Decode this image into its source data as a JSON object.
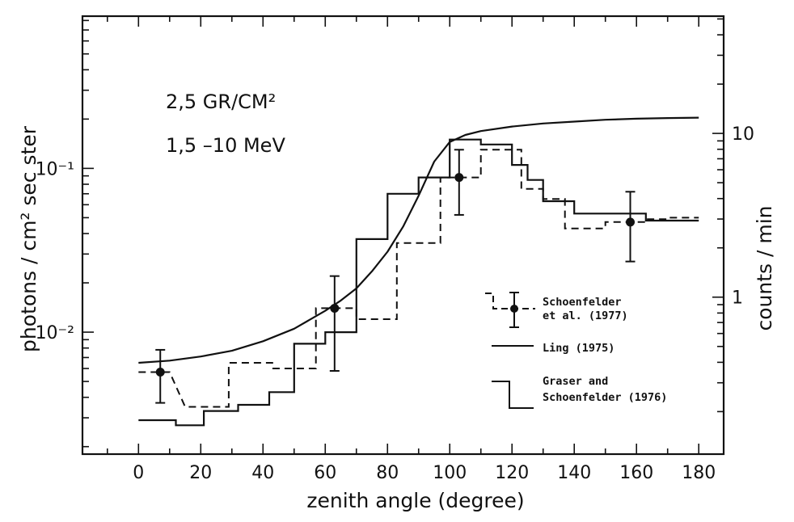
{
  "chart_data": {
    "type": "line",
    "annotations": [
      "2,5 GR/CM²",
      "1,5 –10 MeV"
    ],
    "xlabel": "zenith angle (degree)",
    "ylabel": "photons / cm² sec ster",
    "y2label": "counts / min",
    "xlim": [
      -18,
      188
    ],
    "ylim": [
      0.0018,
      0.85
    ],
    "yscale": "log",
    "y2lim": [
      0.11,
      52
    ],
    "y2scale": "log",
    "x_ticks": [
      "0",
      "20",
      "40",
      "60",
      "80",
      "100",
      "120",
      "140",
      "160",
      "180"
    ],
    "y_ticks": [
      {
        "value": 0.1,
        "label": "10⁻¹"
      },
      {
        "value": 0.01,
        "label": "10⁻²"
      }
    ],
    "y2_ticks": [
      {
        "value": 10,
        "label": "10"
      },
      {
        "value": 1,
        "label": "1"
      }
    ],
    "legend": [
      {
        "name": "Schoenfelder",
        "name2": "et al. (1977)"
      },
      {
        "name": "Ling (1975)",
        "name2": ""
      },
      {
        "name": "Graser and",
        "name2": "Schoenfelder (1976)"
      }
    ],
    "legend_position": "center-right",
    "series": [
      {
        "name": "Schoenfelder et al. (1977)",
        "style": "dashed-histogram",
        "steps": [
          [
            0,
            0.0057
          ],
          [
            10,
            0.0057
          ],
          [
            15,
            0.0035
          ],
          [
            29,
            0.0035
          ],
          [
            29,
            0.0065
          ],
          [
            43,
            0.0065
          ],
          [
            43,
            0.006
          ],
          [
            57,
            0.006
          ],
          [
            57,
            0.014
          ],
          [
            70,
            0.014
          ],
          [
            70,
            0.012
          ],
          [
            83,
            0.012
          ],
          [
            83,
            0.035
          ],
          [
            97,
            0.035
          ],
          [
            97,
            0.088
          ],
          [
            110,
            0.088
          ],
          [
            110,
            0.13
          ],
          [
            123,
            0.13
          ],
          [
            123,
            0.075
          ],
          [
            130,
            0.075
          ],
          [
            130,
            0.065
          ],
          [
            137,
            0.065
          ],
          [
            137,
            0.043
          ],
          [
            150,
            0.043
          ],
          [
            150,
            0.047
          ],
          [
            163,
            0.047
          ],
          [
            163,
            0.049
          ],
          [
            170,
            0.049
          ],
          [
            170,
            0.05
          ],
          [
            180,
            0.05
          ]
        ],
        "points": [
          {
            "x": 7,
            "y": 0.0057,
            "ylo": 0.0037,
            "yhi": 0.0078
          },
          {
            "x": 63,
            "y": 0.014,
            "ylo": 0.0058,
            "yhi": 0.022
          },
          {
            "x": 103,
            "y": 0.088,
            "ylo": 0.052,
            "yhi": 0.13
          },
          {
            "x": 158,
            "y": 0.047,
            "ylo": 0.027,
            "yhi": 0.072
          }
        ]
      },
      {
        "name": "Ling (1975)",
        "style": "solid-curve",
        "x": [
          0,
          10,
          20,
          30,
          40,
          50,
          60,
          65,
          70,
          75,
          80,
          85,
          90,
          95,
          100,
          105,
          110,
          120,
          130,
          140,
          150,
          160,
          170,
          180
        ],
        "y": [
          0.0065,
          0.0067,
          0.0071,
          0.0077,
          0.0088,
          0.0105,
          0.0135,
          0.0156,
          0.0185,
          0.0235,
          0.031,
          0.044,
          0.068,
          0.11,
          0.145,
          0.16,
          0.169,
          0.18,
          0.188,
          0.193,
          0.198,
          0.201,
          0.203,
          0.204
        ]
      },
      {
        "name": "Graser and Schoenfelder (1976)",
        "style": "solid-histogram",
        "steps": [
          [
            0,
            0.0029
          ],
          [
            12,
            0.0029
          ],
          [
            12,
            0.0027
          ],
          [
            21,
            0.0027
          ],
          [
            21,
            0.0033
          ],
          [
            32,
            0.0033
          ],
          [
            32,
            0.0036
          ],
          [
            42,
            0.0036
          ],
          [
            42,
            0.0043
          ],
          [
            50,
            0.0043
          ],
          [
            50,
            0.0085
          ],
          [
            60,
            0.0085
          ],
          [
            60,
            0.01
          ],
          [
            70,
            0.01
          ],
          [
            70,
            0.037
          ],
          [
            80,
            0.037
          ],
          [
            80,
            0.07
          ],
          [
            90,
            0.07
          ],
          [
            90,
            0.088
          ],
          [
            100,
            0.088
          ],
          [
            100,
            0.15
          ],
          [
            110,
            0.15
          ],
          [
            110,
            0.14
          ],
          [
            120,
            0.14
          ],
          [
            120,
            0.105
          ],
          [
            125,
            0.105
          ],
          [
            125,
            0.085
          ],
          [
            130,
            0.085
          ],
          [
            130,
            0.063
          ],
          [
            140,
            0.063
          ],
          [
            140,
            0.053
          ],
          [
            150,
            0.053
          ],
          [
            150,
            0.053
          ],
          [
            163,
            0.053
          ],
          [
            163,
            0.048
          ],
          [
            180,
            0.048
          ]
        ]
      }
    ]
  }
}
